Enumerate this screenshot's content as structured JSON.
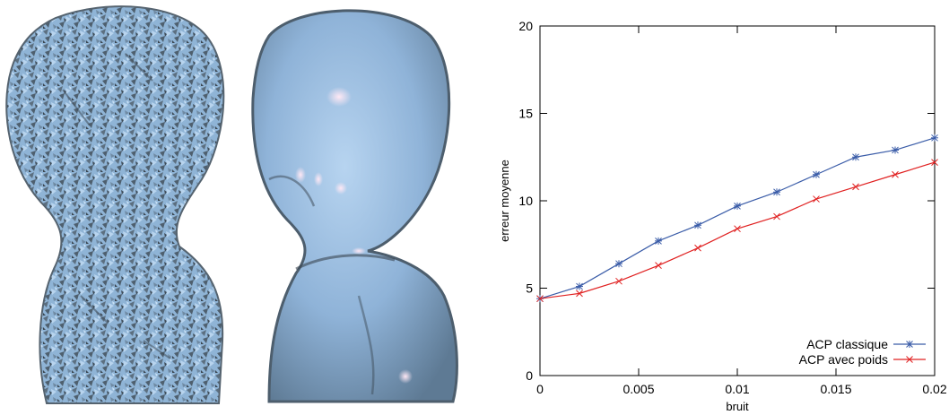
{
  "images": [
    {
      "name": "noisy-bust-render"
    },
    {
      "name": "smoothed-bust-render"
    }
  ],
  "chart_data": {
    "type": "line",
    "xlabel": "bruit",
    "ylabel": "erreur moyenne",
    "xlim": [
      0,
      0.02
    ],
    "ylim": [
      0,
      20
    ],
    "xticks": [
      {
        "value": 0,
        "label": "0"
      },
      {
        "value": 0.005,
        "label": "0.005"
      },
      {
        "value": 0.01,
        "label": "0.01"
      },
      {
        "value": 0.015,
        "label": "0.015"
      },
      {
        "value": 0.02,
        "label": "0.02"
      }
    ],
    "yticks": [
      {
        "value": 0,
        "label": "0"
      },
      {
        "value": 5,
        "label": "5"
      },
      {
        "value": 10,
        "label": "10"
      },
      {
        "value": 15,
        "label": "15"
      },
      {
        "value": 20,
        "label": "20"
      }
    ],
    "grid": false,
    "legend_position": "bottom-right",
    "x": [
      0,
      0.002,
      0.004,
      0.006,
      0.008,
      0.01,
      0.012,
      0.014,
      0.016,
      0.018,
      0.02
    ],
    "series": [
      {
        "name": "ACP classique",
        "color": "#3a5ca8",
        "marker": "asterisk",
        "values": [
          4.4,
          5.1,
          6.4,
          7.7,
          8.6,
          9.7,
          10.5,
          11.5,
          12.5,
          12.9,
          13.6
        ]
      },
      {
        "name": "ACP avec poids",
        "color": "#e02020",
        "marker": "cross",
        "values": [
          4.4,
          4.7,
          5.4,
          6.3,
          7.3,
          8.4,
          9.1,
          10.1,
          10.8,
          11.5,
          12.2
        ]
      }
    ]
  }
}
